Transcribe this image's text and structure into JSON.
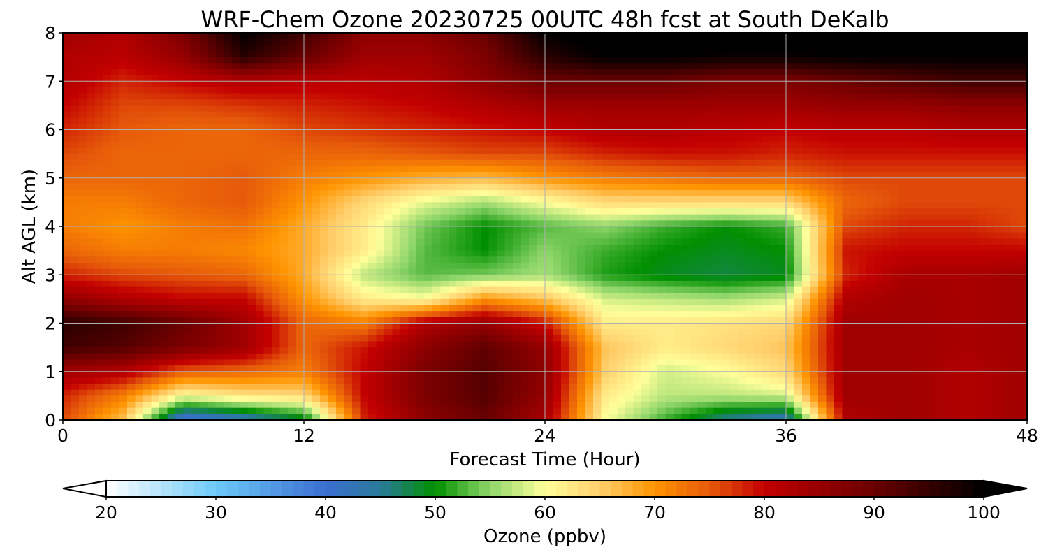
{
  "chart_data": {
    "type": "heatmap",
    "title": "WRF-Chem Ozone  20230725 00UTC 48h fcst at South DeKalb",
    "xlabel": "Forecast Time (Hour)",
    "ylabel": "Alt AGL (km)",
    "xlim": [
      0,
      48
    ],
    "ylim": [
      0,
      8
    ],
    "x_ticks": [
      "0",
      "12",
      "24",
      "36",
      "48"
    ],
    "y_ticks": [
      "0",
      "1",
      "2",
      "3",
      "4",
      "5",
      "6",
      "7",
      "8"
    ],
    "grid": true,
    "x": [
      0,
      3,
      6,
      9,
      12,
      15,
      18,
      21,
      24,
      27,
      30,
      33,
      36,
      39,
      42,
      45,
      48
    ],
    "y": [
      0,
      0.5,
      1,
      1.5,
      2,
      2.5,
      3,
      3.5,
      4,
      4.5,
      5,
      5.5,
      6,
      6.5,
      7,
      7.5,
      8
    ],
    "z": [
      [
        76,
        66,
        38,
        42,
        48,
        78,
        86,
        90,
        83,
        60,
        52,
        45,
        42,
        82,
        84,
        82,
        84
      ],
      [
        78,
        72,
        60,
        63,
        64,
        80,
        88,
        92,
        85,
        62,
        57,
        57,
        58,
        84,
        84,
        82,
        84
      ],
      [
        84,
        82,
        75,
        74,
        72,
        80,
        88,
        92,
        86,
        65,
        58,
        60,
        64,
        84,
        84,
        82,
        84
      ],
      [
        94,
        92,
        88,
        84,
        74,
        79,
        86,
        91,
        85,
        66,
        62,
        64,
        66,
        84,
        84,
        83,
        84
      ],
      [
        96,
        94,
        90,
        84,
        74,
        72,
        82,
        85,
        79,
        62,
        62,
        63,
        64,
        84,
        84,
        83,
        84
      ],
      [
        86,
        82,
        80,
        80,
        70,
        62,
        60,
        70,
        66,
        58,
        57,
        56,
        58,
        82,
        84,
        83,
        84
      ],
      [
        78,
        76,
        75,
        74,
        68,
        57,
        53,
        54,
        56,
        51,
        49,
        48,
        49,
        78,
        83,
        83,
        84
      ],
      [
        74,
        72,
        72,
        71,
        68,
        62,
        53,
        50,
        55,
        52,
        50,
        49,
        50,
        79,
        80,
        80,
        80
      ],
      [
        72,
        70,
        72,
        73,
        68,
        62,
        54,
        50,
        53,
        55,
        52,
        50,
        52,
        76,
        78,
        78,
        76
      ],
      [
        72,
        72,
        74,
        75,
        70,
        64,
        59,
        56,
        60,
        64,
        64,
        64,
        64,
        74,
        76,
        76,
        76
      ],
      [
        74,
        74,
        74,
        75,
        72,
        70,
        68,
        67,
        70,
        72,
        73,
        74,
        74,
        76,
        76,
        76,
        76
      ],
      [
        76,
        74,
        74,
        74,
        74,
        74,
        75,
        76,
        76,
        78,
        79,
        79,
        78,
        79,
        79,
        79,
        79
      ],
      [
        78,
        75,
        74,
        74,
        76,
        77,
        78,
        79,
        80,
        82,
        82,
        81,
        80,
        81,
        81,
        82,
        82
      ],
      [
        80,
        76,
        76,
        77,
        78,
        79,
        80,
        82,
        84,
        84,
        84,
        84,
        84,
        85,
        85,
        86,
        86
      ],
      [
        82,
        78,
        80,
        82,
        81,
        81,
        82,
        86,
        90,
        90,
        90,
        88,
        88,
        90,
        92,
        94,
        94
      ],
      [
        82,
        81,
        85,
        96,
        90,
        84,
        84,
        88,
        96,
        100,
        100,
        99,
        99,
        100,
        100,
        100,
        100
      ],
      [
        84,
        82,
        88,
        100,
        94,
        86,
        86,
        90,
        100,
        102,
        102,
        102,
        102,
        102,
        102,
        102,
        102
      ]
    ],
    "colorbar": {
      "label": "Ozone  (ppbv)",
      "min": 20,
      "max": 100,
      "ticks": [
        "20",
        "30",
        "40",
        "50",
        "60",
        "70",
        "80",
        "90",
        "100"
      ],
      "extend": "both",
      "stops": [
        [
          20,
          "#ffffff"
        ],
        [
          30,
          "#6ccaf8"
        ],
        [
          40,
          "#3a6ed0"
        ],
        [
          45,
          "#2a7a9a"
        ],
        [
          50,
          "#008f00"
        ],
        [
          55,
          "#8fd66a"
        ],
        [
          60,
          "#ffff9a"
        ],
        [
          65,
          "#ffcf6c"
        ],
        [
          70,
          "#ff9400"
        ],
        [
          75,
          "#e65a0a"
        ],
        [
          80,
          "#c30000"
        ],
        [
          90,
          "#6a0000"
        ],
        [
          100,
          "#000000"
        ]
      ]
    }
  }
}
